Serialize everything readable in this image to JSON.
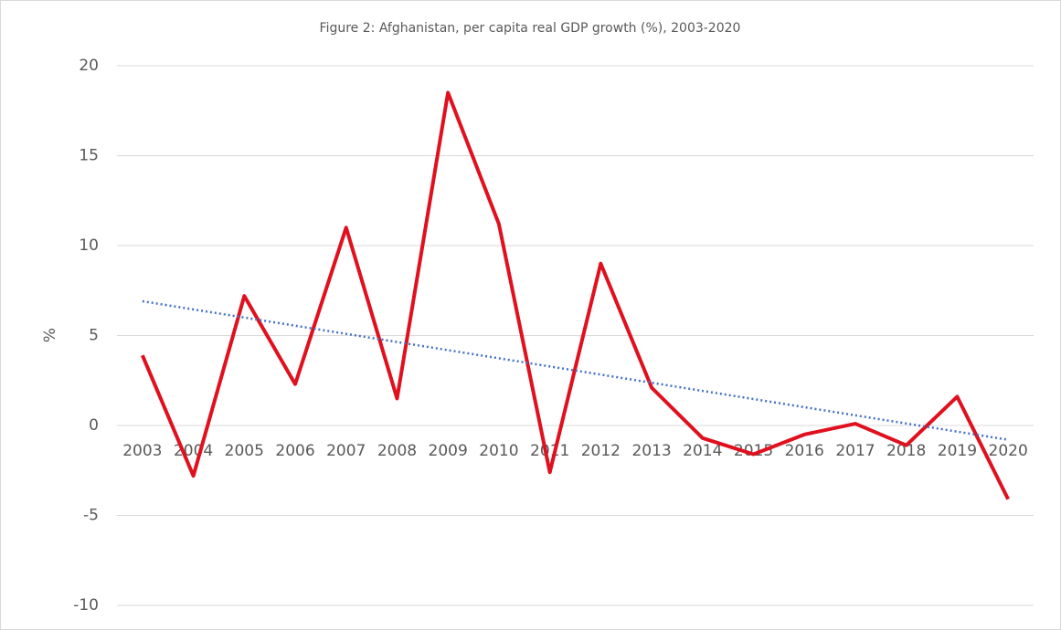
{
  "chart_data": {
    "type": "line",
    "title": "Figure 2: Afghanistan, per capita real GDP growth (%), 2003-2020",
    "y_label": "%",
    "categories": [
      "2003",
      "2004",
      "2005",
      "2006",
      "2007",
      "2008",
      "2009",
      "2010",
      "2011",
      "2012",
      "2013",
      "2014",
      "2015",
      "2016",
      "2017",
      "2018",
      "2019",
      "2020"
    ],
    "series": [
      {
        "name": "Afghanistan",
        "color": "#e0101e",
        "values": [
          3.9,
          -2.8,
          7.2,
          2.3,
          11.0,
          1.5,
          18.5,
          11.2,
          -2.6,
          9.0,
          2.1,
          -0.7,
          -1.6,
          -0.5,
          0.1,
          -1.1,
          1.6,
          -4.1
        ]
      }
    ],
    "trendline": {
      "kind": "linear",
      "color": "#4472c4"
    },
    "ylim": [
      -10,
      20
    ],
    "yticks": [
      -10,
      -5,
      0,
      5,
      10,
      15,
      20
    ],
    "grid": true
  }
}
